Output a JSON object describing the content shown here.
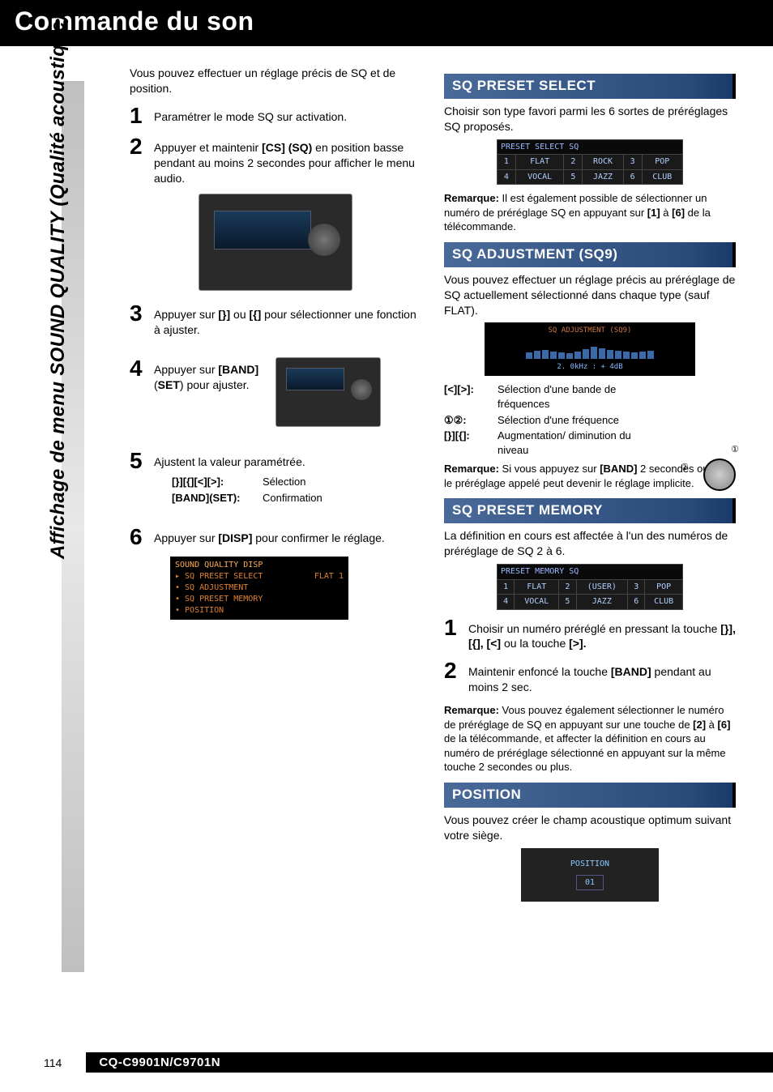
{
  "page_title": "Commande du son",
  "sidebar_label": "Affichage de menu SOUND QUALITY (Qualité acoustique)",
  "left": {
    "intro": "Vous pouvez effectuer un réglage précis de SQ et de position.",
    "steps": {
      "s1": "Paramétrer le mode SQ sur activation.",
      "s2_a": "Appuyer et maintenir ",
      "s2_b": "[CS] (SQ)",
      "s2_c": " en position basse pendant au moins 2 secondes pour afficher le menu audio.",
      "s3_a": "Appuyer sur ",
      "s3_b": "[}]",
      "s3_c": " ou ",
      "s3_d": "[{]",
      "s3_e": " pour sélectionner une fonction à ajuster.",
      "s4_a": "Appuyer sur ",
      "s4_b": "[BAND]",
      "s4_c": " (",
      "s4_d": "SET",
      "s4_e": ") pour ajuster.",
      "s5": "Ajustent la valeur paramétrée.",
      "s5_def1_k": "[}][{][<][>]:",
      "s5_def1_v": "Sélection",
      "s5_def2_k": "[BAND](SET):",
      "s5_def2_v": "Confirmation",
      "s6_a": "Appuyer sur ",
      "s6_b": "[DISP]",
      "s6_c": " pour confirmer le réglage."
    },
    "menu_lines": {
      "hdr": "SOUND QUALITY DISP",
      "r1a": "▸ SQ PRESET SELECT",
      "r1b": "FLAT 1",
      "r2a": "• SQ ADJUSTMENT",
      "r2b": "",
      "r3a": "• SQ PRESET MEMORY",
      "r3b": "",
      "r4a": "• POSITION",
      "r4b": ""
    }
  },
  "right": {
    "sect1": {
      "head": "SQ PRESET SELECT",
      "body": "Choisir son type favori parmi les 6 sortes de préréglages SQ proposés.",
      "tbl_title": "PRESET SELECT      SQ",
      "cells": [
        "1",
        "FLAT",
        "2",
        "ROCK",
        "3",
        "POP",
        "4",
        "VOCAL",
        "5",
        "JAZZ",
        "6",
        "CLUB"
      ],
      "note_a": "Remarque:",
      "note_b": " Il est également possible de sélectionner un numéro de préréglage SQ en appuyant sur ",
      "note_c": "[1]",
      "note_d": " à ",
      "note_e": "[6]",
      "note_f": " de la télécommande."
    },
    "sect2": {
      "head": "SQ ADJUSTMENT (SQ9)",
      "body": "Vous pouvez effectuer un réglage précis au préréglage de SQ actuellement sélectionné dans chaque type (sauf FLAT).",
      "img_hdr": "SQ ADJUSTMENT (SQ9)",
      "img_ftr": "2. 0kHz : +  4dB",
      "bars": [
        8,
        10,
        11,
        9,
        8,
        7,
        9,
        12,
        15,
        13,
        11,
        10,
        9,
        8,
        9,
        10
      ],
      "ctrl1_k": "[<][>]:",
      "ctrl1_v": "Sélection d'une bande de fréquences",
      "ctrl2_k": "①②:",
      "ctrl2_v": "Sélection d'une fréquence",
      "ctrl3_k": "[}][{]:",
      "ctrl3_v": "Augmentation/ diminution du niveau",
      "note_a": "Remarque:",
      "note_b": " Si vous appuyez sur ",
      "note_c": "[BAND]",
      "note_d": " 2 secondes ou plus, le préréglage appelé peut devenir le réglage implicite."
    },
    "sect3": {
      "head": "SQ PRESET MEMORY",
      "body": "La définition en cours est affectée à l'un des numéros de préréglage de SQ 2 à 6.",
      "tbl_title": "PRESET MEMORY      SQ",
      "cells": [
        "1",
        "FLAT",
        "2",
        "(USER)",
        "3",
        "POP",
        "4",
        "VOCAL",
        "5",
        "JAZZ",
        "6",
        "CLUB"
      ],
      "s1_a": "Choisir un numéro préréglé en pressant la touche ",
      "s1_b": "[}], [{], [<]",
      "s1_c": " ou la touche ",
      "s1_d": "[>].",
      "s2_a": "Maintenir enfoncé la touche ",
      "s2_b": "[BAND]",
      "s2_c": " pendant au moins 2 sec.",
      "note_a": "Remarque:",
      "note_b": " Vous pouvez également sélectionner le numéro de préréglage de SQ en appuyant sur une touche de ",
      "note_c": "[2]",
      "note_d": " à ",
      "note_e": "[6]",
      "note_f": " de la télécommande, et affecter la définition en cours au numéro de préréglage sélectionné en appuyant sur la même touche 2 secondes ou plus."
    },
    "sect4": {
      "head": "POSITION",
      "body": "Vous pouvez créer le champ acoustique optimum suivant votre siège.",
      "img_lbl": "POSITION",
      "img_val": "01"
    }
  },
  "footer": {
    "page": "114",
    "model": "CQ-C9901N/C9701N"
  },
  "colors": {
    "title_bg": "#000000",
    "section_bg_from": "#4a6a9a",
    "section_bg_to": "#1a3a6a",
    "screen_text": "#88bbff"
  }
}
